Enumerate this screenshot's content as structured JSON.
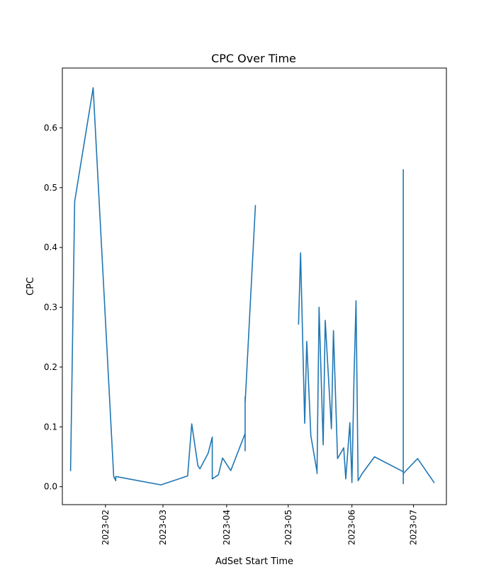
{
  "chart_data": {
    "type": "line",
    "title": "CPC Over Time",
    "xlabel": "AdSet Start Time",
    "ylabel": "CPC",
    "grid": false,
    "legend": "none",
    "x_range": [
      "2023-01-11",
      "2023-07-17"
    ],
    "ylim": [
      -0.03,
      0.7
    ],
    "x_ticks": [
      "2023-02",
      "2023-03",
      "2023-04",
      "2023-05",
      "2023-06",
      "2023-07"
    ],
    "y_ticks": [
      "0.0",
      "0.1",
      "0.2",
      "0.3",
      "0.4",
      "0.5",
      "0.6"
    ],
    "series": [
      {
        "color": "#1f77b4",
        "segments": [
          {
            "x": [
              "2023-01-15",
              "2023-01-17",
              "2023-01-26",
              "2023-02-05",
              "2023-02-06",
              "2023-02-06",
              "2023-02-28",
              "2023-03-13",
              "2023-03-15",
              "2023-03-18",
              "2023-03-19",
              "2023-03-23",
              "2023-03-25",
              "2023-03-25",
              "2023-03-28",
              "2023-03-30",
              "2023-04-03",
              "2023-04-10",
              "2023-04-10",
              "2023-04-10",
              "2023-04-10",
              "2023-04-15"
            ],
            "y": [
              0.027,
              0.477,
              0.667,
              0.017,
              0.01,
              0.017,
              0.003,
              0.018,
              0.105,
              0.035,
              0.03,
              0.056,
              0.083,
              0.013,
              0.02,
              0.048,
              0.027,
              0.089,
              0.06,
              0.15,
              0.14,
              0.47
            ]
          },
          {
            "x": [
              "2023-05-06",
              "2023-05-07",
              "2023-05-09",
              "2023-05-10",
              "2023-05-12",
              "2023-05-15",
              "2023-05-15",
              "2023-05-16",
              "2023-05-18",
              "2023-05-19",
              "2023-05-22",
              "2023-05-23",
              "2023-05-25",
              "2023-05-28",
              "2023-05-29",
              "2023-05-31",
              "2023-06-01",
              "2023-06-02",
              "2023-06-03",
              "2023-06-04",
              "2023-06-06",
              "2023-06-12",
              "2023-06-26",
              "2023-06-26",
              "2023-06-26",
              "2023-06-26",
              "2023-06-26",
              "2023-07-03",
              "2023-07-11"
            ],
            "y": [
              0.272,
              0.391,
              0.106,
              0.243,
              0.085,
              0.025,
              0.022,
              0.3,
              0.07,
              0.278,
              0.097,
              0.261,
              0.047,
              0.065,
              0.013,
              0.107,
              0.007,
              0.18,
              0.311,
              0.01,
              0.022,
              0.05,
              0.025,
              0.53,
              0.005,
              0.53,
              0.022,
              0.047,
              0.007
            ]
          }
        ]
      }
    ]
  }
}
